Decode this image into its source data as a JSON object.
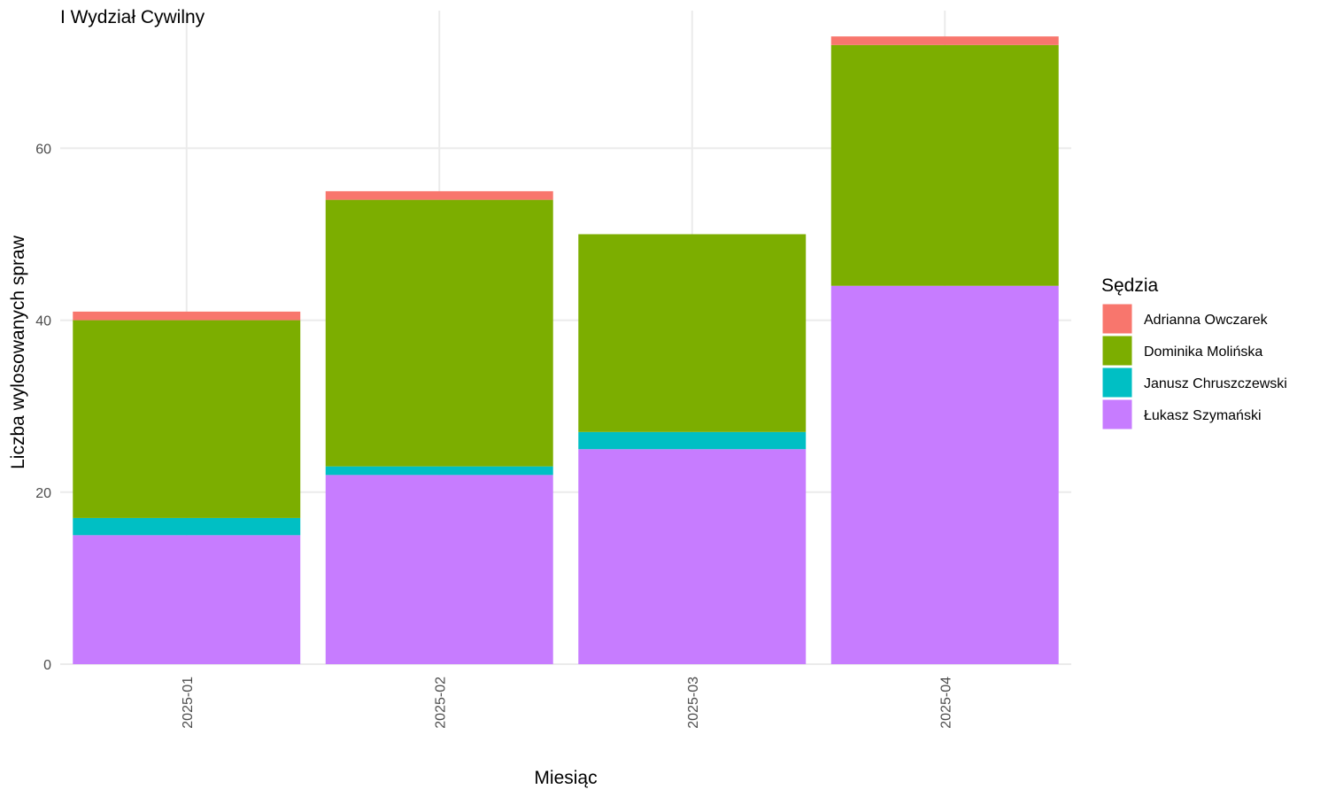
{
  "chart_data": {
    "type": "bar",
    "stacked": true,
    "title": "I Wydział Cywilny",
    "xlabel": "Miesiąc",
    "ylabel": "Liczba wylosowanych spraw",
    "categories": [
      "2025-01",
      "2025-02",
      "2025-03",
      "2025-04"
    ],
    "ylim": [
      0,
      76
    ],
    "y_ticks": [
      0,
      20,
      40,
      60
    ],
    "grid": true,
    "legend": {
      "title": "Sędzia",
      "position": "right"
    },
    "series": [
      {
        "name": "Łukasz Szymański",
        "color": "#C77CFF",
        "values": [
          15,
          22,
          25,
          44
        ]
      },
      {
        "name": "Janusz Chruszczewski",
        "color": "#00BFC4",
        "values": [
          2,
          1,
          2,
          0
        ]
      },
      {
        "name": "Dominika Molińska",
        "color": "#7CAE00",
        "values": [
          23,
          31,
          23,
          28
        ]
      },
      {
        "name": "Adrianna Owczarek",
        "color": "#F8766D",
        "values": [
          1,
          1,
          0,
          1
        ]
      }
    ],
    "legend_order": [
      "Adrianna Owczarek",
      "Dominika Molińska",
      "Janusz Chruszczewski",
      "Łukasz Szymański"
    ]
  }
}
